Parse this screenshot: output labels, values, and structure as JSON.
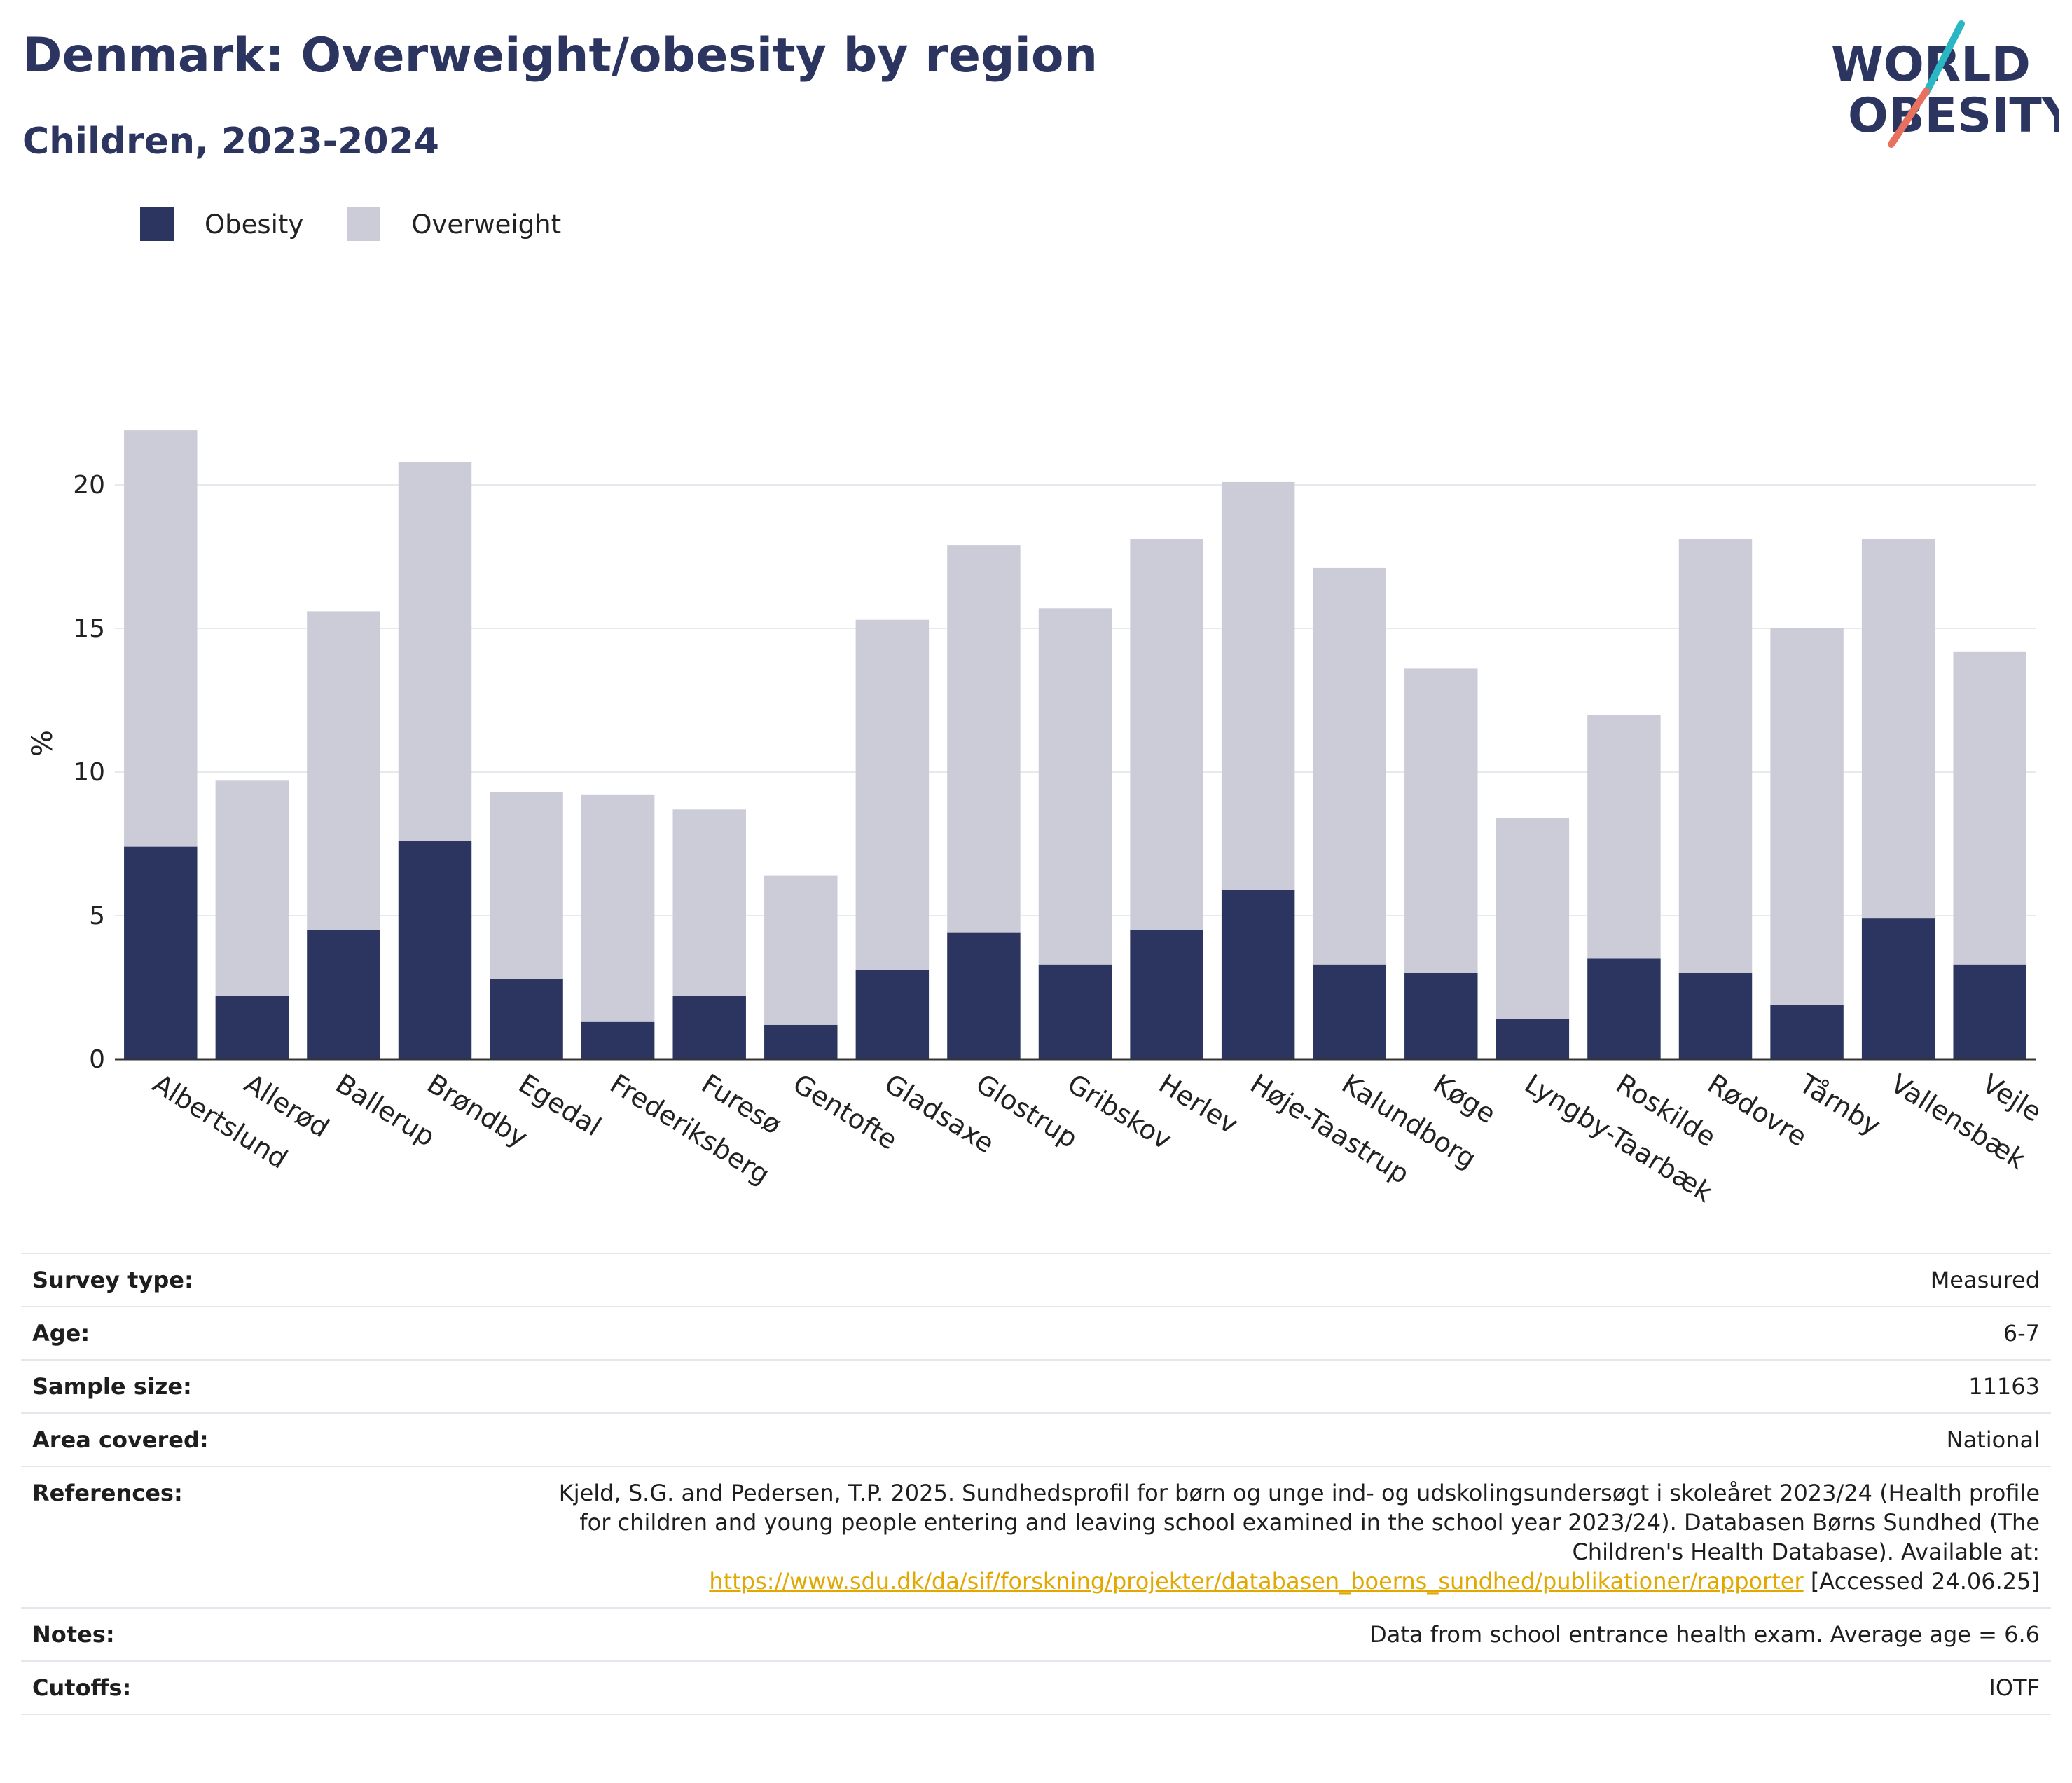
{
  "header": {
    "title": "Denmark: Overweight/obesity by region",
    "subtitle": "Children, 2023-2024"
  },
  "logo": {
    "line1": "WORLD",
    "line2": "OBESITY",
    "colors": {
      "text": "#2b3560",
      "slash_teal": "#2bb6c4",
      "slash_red": "#e8705e"
    }
  },
  "colors": {
    "obesity": "#2b3560",
    "overweight": "#cbccd8",
    "grid": "#e8e9ee",
    "axis": "#333333"
  },
  "chart_data": {
    "type": "bar",
    "stacked": true,
    "categories": [
      "Albertslund",
      "Allerød",
      "Ballerup",
      "Brøndby",
      "Egedal",
      "Frederiksberg",
      "Furesø",
      "Gentofte",
      "Gladsaxe",
      "Glostrup",
      "Gribskov",
      "Herlev",
      "Høje-Taastrup",
      "Kalundborg",
      "Køge",
      "Lyngby-Taarbæk",
      "Roskilde",
      "Rødovre",
      "Tårnby",
      "Vallensbæk",
      "Vejle"
    ],
    "series": [
      {
        "name": "Obesity",
        "values": [
          7.4,
          2.2,
          4.5,
          7.6,
          2.8,
          1.3,
          2.2,
          1.2,
          3.1,
          4.4,
          3.3,
          4.5,
          5.9,
          3.3,
          3.0,
          1.4,
          3.5,
          3.0,
          1.9,
          4.9,
          3.3
        ]
      },
      {
        "name": "Overweight",
        "values": [
          14.5,
          7.5,
          11.1,
          13.2,
          6.5,
          7.9,
          6.5,
          5.2,
          12.2,
          13.5,
          12.4,
          13.6,
          14.2,
          13.8,
          10.6,
          7.0,
          8.5,
          15.1,
          13.1,
          13.2,
          10.9
        ]
      }
    ],
    "legend": [
      "Obesity",
      "Overweight"
    ],
    "legend_placement": "top-left",
    "ylabel": "%",
    "xlabel": "",
    "yticks": [
      0,
      5,
      10,
      15,
      20
    ],
    "ylim": [
      0,
      22
    ],
    "grid": true
  },
  "info": {
    "rows": [
      {
        "key": "Survey type:",
        "value": "Measured"
      },
      {
        "key": "Age:",
        "value": "6-7"
      },
      {
        "key": "Sample size:",
        "value": "11163"
      },
      {
        "key": "Area covered:",
        "value": "National"
      }
    ],
    "references": {
      "key": "References:",
      "line1": "Kjeld, S.G. and Pedersen, T.P. 2025. Sundhedsprofil for børn og unge ind- og udskolingsundersøgt i skoleåret 2023/24 (Health profile",
      "line2": "for children and young people entering and leaving school examined in the school year 2023/24). Databasen Børns Sundhed (The",
      "line3": "Children's Health Database). Available at:",
      "link": "https://www.sdu.dk/da/sif/forskning/projekter/databasen_boerns_sundhed/publikationer/rapporter",
      "accessed": " [Accessed 24.06.25]"
    },
    "notes": {
      "key": "Notes:",
      "value": "Data from school entrance health exam. Average age = 6.6"
    },
    "cutoffs": {
      "key": "Cutoffs:",
      "value": "IOTF"
    }
  }
}
